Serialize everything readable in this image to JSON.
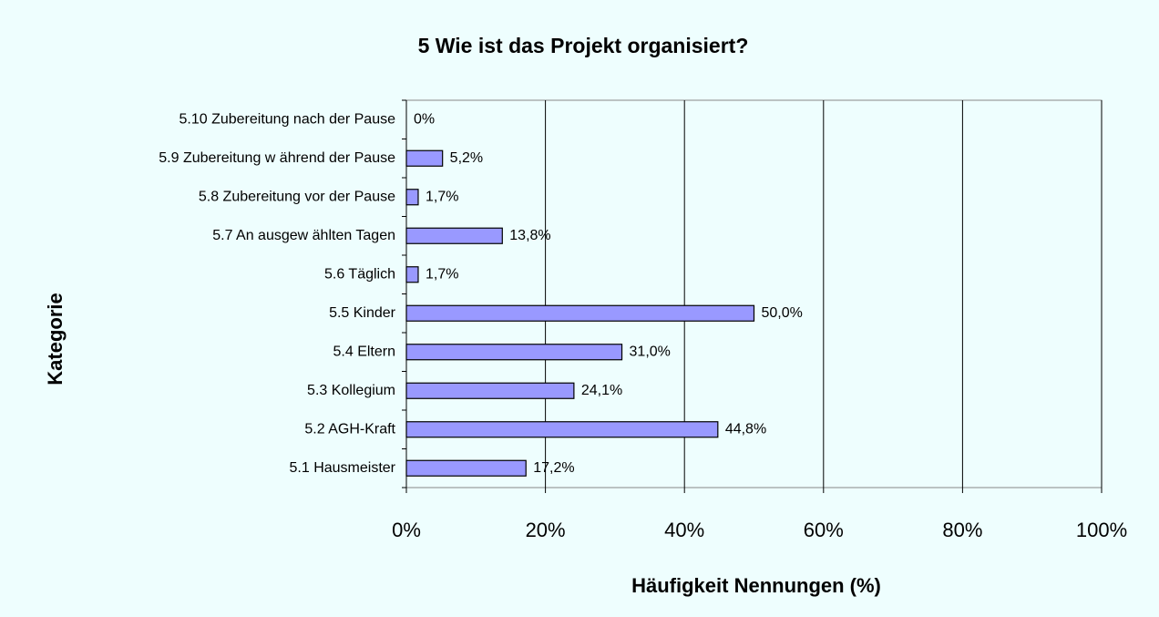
{
  "chart_data": {
    "type": "bar",
    "orientation": "horizontal",
    "title": "5 Wie ist das Projekt organisiert?",
    "x_label": "Häufigkeit Nennungen (%)",
    "y_label": "Kategorie",
    "categories": [
      "5.10 Zubereitung nach der Pause",
      "5.9 Zubereitung w ährend der Pause",
      "5.8 Zubereitung vor der Pause",
      "5.7 An ausgew ählten Tagen",
      "5.6 Täglich",
      "5.5 Kinder",
      "5.4 Eltern",
      "5.3 Kollegium",
      "5.2 AGH-Kraft",
      "5.1 Hausmeister"
    ],
    "values": [
      0,
      5.2,
      1.7,
      13.8,
      1.7,
      50.0,
      31.0,
      24.1,
      44.8,
      17.2
    ],
    "value_labels": [
      "0%",
      "5,2%",
      "1,7%",
      "13,8%",
      "1,7%",
      "50,0%",
      "31,0%",
      "24,1%",
      "44,8%",
      "17,2%"
    ],
    "color": "#9999ff",
    "xlim": [
      0,
      100
    ],
    "xticks": [
      {
        "value": 0,
        "label": "0%"
      },
      {
        "value": 20,
        "label": "20%"
      },
      {
        "value": 40,
        "label": "40%"
      },
      {
        "value": 60,
        "label": "60%"
      },
      {
        "value": 80,
        "label": "80%"
      },
      {
        "value": 100,
        "label": "100%"
      }
    ],
    "grid": true
  }
}
